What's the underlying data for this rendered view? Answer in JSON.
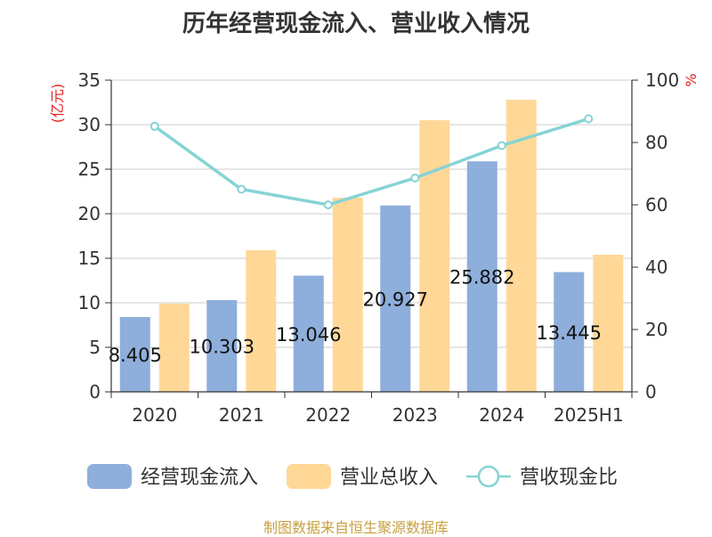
{
  "chart_data": {
    "type": "bar",
    "title": "历年经营现金流入、营业收入情况",
    "categories": [
      "2020",
      "2021",
      "2022",
      "2023",
      "2024",
      "2025H1"
    ],
    "y_left": {
      "unit": "(亿元)",
      "min": 0,
      "max": 35,
      "ticks": [
        0,
        5,
        10,
        15,
        20,
        25,
        30,
        35
      ]
    },
    "y_right": {
      "unit": "%",
      "min": 0,
      "max": 100,
      "ticks": [
        0,
        20,
        40,
        60,
        80,
        100
      ]
    },
    "grid": true,
    "legend_position": "bottom",
    "series": [
      {
        "name": "经营现金流入",
        "type": "bar",
        "axis": "left",
        "color": "#8eaedb",
        "values": [
          8.405,
          10.303,
          13.046,
          20.927,
          25.882,
          13.445
        ],
        "labels": [
          "8.405",
          "10.303",
          "13.046",
          "20.927",
          "25.882",
          "13.445"
        ]
      },
      {
        "name": "营业总收入",
        "type": "bar",
        "axis": "left",
        "color": "#ffd898",
        "values": [
          9.9,
          15.9,
          21.8,
          30.5,
          32.8,
          15.4
        ]
      },
      {
        "name": "营收现金比",
        "type": "line",
        "axis": "right",
        "color": "#86d3d6",
        "values": [
          85.2,
          65.0,
          60.0,
          68.6,
          79.0,
          87.6
        ]
      }
    ]
  },
  "source": "制图数据来自恒生聚源数据库"
}
